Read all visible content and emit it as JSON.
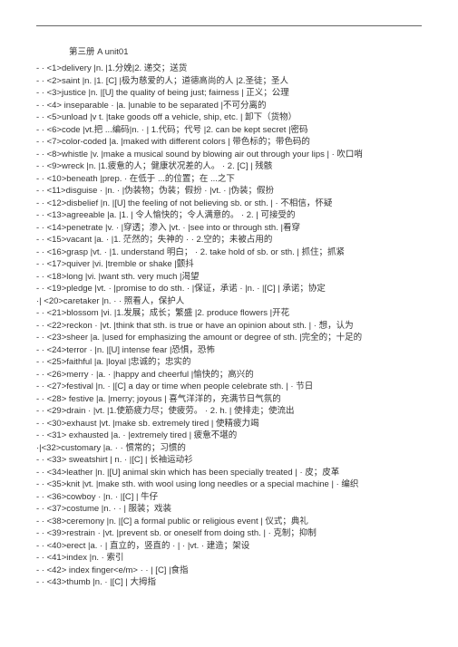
{
  "header": "第三册   A                unit01",
  "rows": [
    {
      "marker": "",
      "text": "- · <1>delivery       |n.    |1.分娩|2. 递交；送货"
    },
    {
      "marker": "",
      "text": "- · <2>saint     |n.    |1. [C] |极为慈爱的人；道德高尚的人    |2.圣徒；圣人"
    },
    {
      "marker": "",
      "text": "- · <3>justice         |n.    |[U] the quality of being just; fairness | 正义；公理"
    },
    {
      "marker": "",
      "text": "- · <4>   inseparable    · |a.     |unable to be separated |不可分离的"
    },
    {
      "marker": "",
      "text": "- · <5>unload    |v t.   |take goods off a vehicle, ship, etc. | 卸下（货物）"
    },
    {
      "marker": "",
      "text": "- · <6>code               |vt.把 ...编码|n.    · | 1.代码；代号   |2. can be kept secret |密码"
    },
    {
      "marker": "",
      "text": "- · <7>color-coded  |a.   |maked with different colors | 带色标的；带色码的"
    },
    {
      "marker": "",
      "text": "- · <8>whistle         |v.    |make a musical sound by blowing air out through your lips | · 吹口哨"
    },
    {
      "marker": "",
      "text": "- · <9>wreck   |n.    |1.疲惫的人；健康状况差的人。   · 2. [C] | 残骸"
    },
    {
      "marker": "",
      "text": "- · <10>beneath       |prep.      · 在低于  ...的位置；在  ...之下"
    },
    {
      "marker": "",
      "text": "- · <11>disguise        · |n. · |伪装物；伪装；假扮    · |vt.    · |伪装；假扮"
    },
    {
      "marker": "",
      "text": "- · <12>disbelief     |n.    |[U] the feeling of not believing sb. or sth. | · 不相信，怀疑"
    },
    {
      "marker": "",
      "text": "- · <13>agreeable    |a.    |1. | 令人愉快的；令人满意的。  ·  2. | 可接受的"
    },
    {
      "marker": "",
      "text": "- · <14>penetrate  |v.     · |穿透；渗入   |vt.    · |see into or through sth. |看穿"
    },
    {
      "marker": "",
      "text": "- · <15>vacant |a.    · |1. 茫然的；失神的     · · 2.空的；未被占用的"
    },
    {
      "marker": "",
      "text": "- · <16>grasp  |vt.    · |1. understand 明白；  · 2. take hold of sb. or sth. | 抓住；抓紧"
    },
    {
      "marker": "",
      "text": "- · <17>quiver         |vi.    |tremble or shake |颤抖"
    },
    {
      "marker": "",
      "text": "- · <18>long     |vi.    |want sth. very much |渴望"
    },
    {
      "marker": "",
      "text": "- · <19>pledge |vt.    · |promise to do sth. · |保证，承诺     · |n.    · |[C] | 承诺；协定"
    },
    {
      "marker": "▲",
      "text": "·| <20>caretaker       |n. · · 照看人，保护人"
    },
    {
      "marker": "",
      "text": "- · <21>blossom       |vi.    |1.发展；成长；繁盛     |2. produce flowers |开花"
    },
    {
      "marker": "",
      "text": "- · <22>reckon        · |vt.    |think that sth. is true or have an opinion about sth. | · 想，认为"
    },
    {
      "marker": "",
      "text": "- · <23>sheer         |a.    |used for emphasizing the amount or degree of sth. |完全的；十足的"
    },
    {
      "marker": "",
      "text": "- · <24>terror        · |n.    |[U] intense fear |恐惧，恐怖"
    },
    {
      "marker": "",
      "text": "- · <25>faithful          |a.    |loyal |忠诚的；忠实的"
    },
    {
      "marker": "",
      "text": "- · <26>merry        · |a.    · |happy and cheerful |愉快的；高兴的"
    },
    {
      "marker": "",
      "text": "- · <27>festival      |n.       · |[C] a day or time when people celebrate sth. | · 节日"
    },
    {
      "marker": "",
      "text": "- · <28>    festive    |a.    |merry; joyous | 喜气洋洋的，充满节日气氛的"
    },
    {
      "marker": "",
      "text": "- · <29>drain         · |vt.    |1.使筋疲力尽；使疲劳。   · 2. h. | 使排走；使流出"
    },
    {
      "marker": "",
      "text": "- · <30>exhaust        |vt.    |make sb. extremely tired | 使精疲力竭"
    },
    {
      "marker": "",
      "text": "- · <31>   exhausted    |a.       · |extremely tired | 疲惫不堪的"
    },
    {
      "marker": "★",
      "text": "·|<32>customary    |a.    · · 惯常的；习惯的"
    },
    {
      "marker": "",
      "text": "- · <33>    sweatshirt | n.       · |[C] | 长袖运动衫"
    },
    {
      "marker": "",
      "text": "- · <34>leather        |n.    |[U] animal skin which has been specially treated | · 皮；皮革"
    },
    {
      "marker": "",
      "text": "- · <35>knit      |vt.    |make sth. with wool using long needles or a special machine | · 编织"
    },
    {
      "marker": "",
      "text": "- · <36>cowboy        · |n.    · |[C] | 牛仔"
    },
    {
      "marker": "",
      "text": "- · <37>costume       |n.    · · | 服装；戏装"
    },
    {
      "marker": "",
      "text": "- · <38>ceremony    |n.    |[C] a formal public or religious event | 仪式；典礼"
    },
    {
      "marker": "",
      "text": "- · <39>restrain     · |vt.    |prevent sb. or oneself from doing sth. | · 克制；抑制"
    },
    {
      "marker": "",
      "text": "- · <40>erect    |a.    · | 直立的，竖直的 · |       · |vt.   · 建造；架设"
    },
    {
      "marker": "",
      "text": "- · <41>index  |n.   · 索引"
    },
    {
      "marker": "",
      "text": "- · <42>    index finger<e/m>   · · | [C] |食指"
    },
    {
      "marker": "",
      "text": "- · <43>thumb        |n.    · |[C] | 大拇指"
    }
  ]
}
